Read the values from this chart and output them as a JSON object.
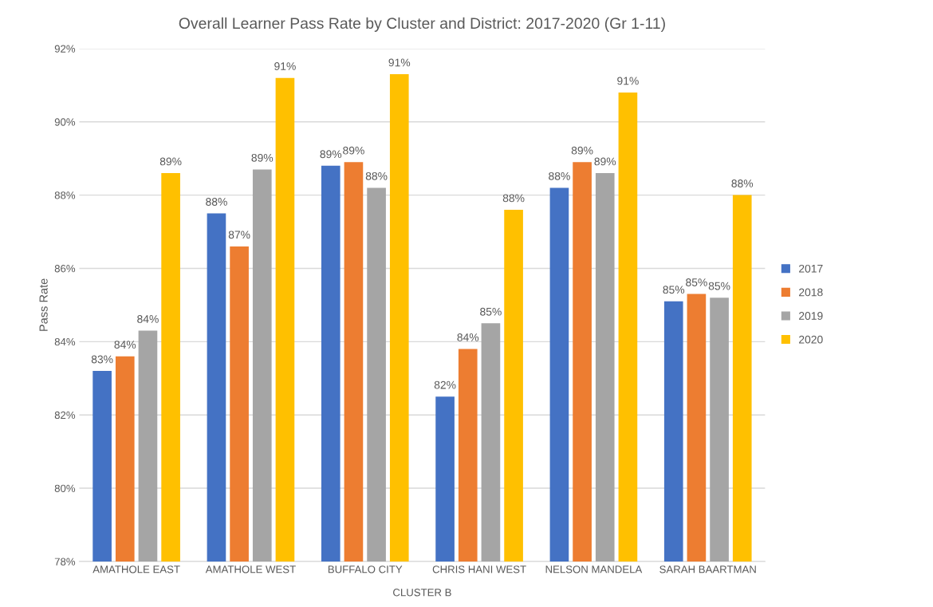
{
  "chart_data": {
    "type": "bar",
    "title": "Overall Learner Pass Rate by Cluster and District: 2017-2020 (Gr 1-11)",
    "xlabel": "CLUSTER B",
    "ylabel": "Pass Rate",
    "categories": [
      "AMATHOLE EAST",
      "AMATHOLE WEST",
      "BUFFALO CITY",
      "CHRIS HANI WEST",
      "NELSON MANDELA",
      "SARAH BAARTMAN"
    ],
    "series": [
      {
        "name": "2017",
        "color": "#4472c4",
        "values": [
          83.2,
          87.5,
          88.8,
          82.5,
          88.2,
          85.1
        ],
        "value_labels": [
          "83%",
          "88%",
          "89%",
          "82%",
          "88%",
          "85%"
        ]
      },
      {
        "name": "2018",
        "color": "#ed7d31",
        "values": [
          83.6,
          86.6,
          88.9,
          83.8,
          88.9,
          85.3
        ],
        "value_labels": [
          "84%",
          "87%",
          "89%",
          "84%",
          "89%",
          "85%"
        ]
      },
      {
        "name": "2019",
        "color": "#a5a5a5",
        "values": [
          84.3,
          88.7,
          88.2,
          84.5,
          88.6,
          85.2
        ],
        "value_labels": [
          "84%",
          "89%",
          "88%",
          "85%",
          "89%",
          "85%"
        ]
      },
      {
        "name": "2020",
        "color": "#ffc000",
        "values": [
          88.6,
          91.2,
          91.3,
          87.6,
          90.8,
          88.0
        ],
        "value_labels": [
          "89%",
          "91%",
          "91%",
          "88%",
          "91%",
          "88%"
        ]
      }
    ],
    "ylim": [
      78,
      92
    ],
    "yticks": [
      {
        "value": 78,
        "label": "78%"
      },
      {
        "value": 80,
        "label": "80%"
      },
      {
        "value": 82,
        "label": "82%"
      },
      {
        "value": 84,
        "label": "84%"
      },
      {
        "value": 86,
        "label": "86%"
      },
      {
        "value": 88,
        "label": "88%"
      },
      {
        "value": 90,
        "label": "90%"
      },
      {
        "value": 92,
        "label": "92%"
      }
    ],
    "grid": "y",
    "legend": "right"
  }
}
